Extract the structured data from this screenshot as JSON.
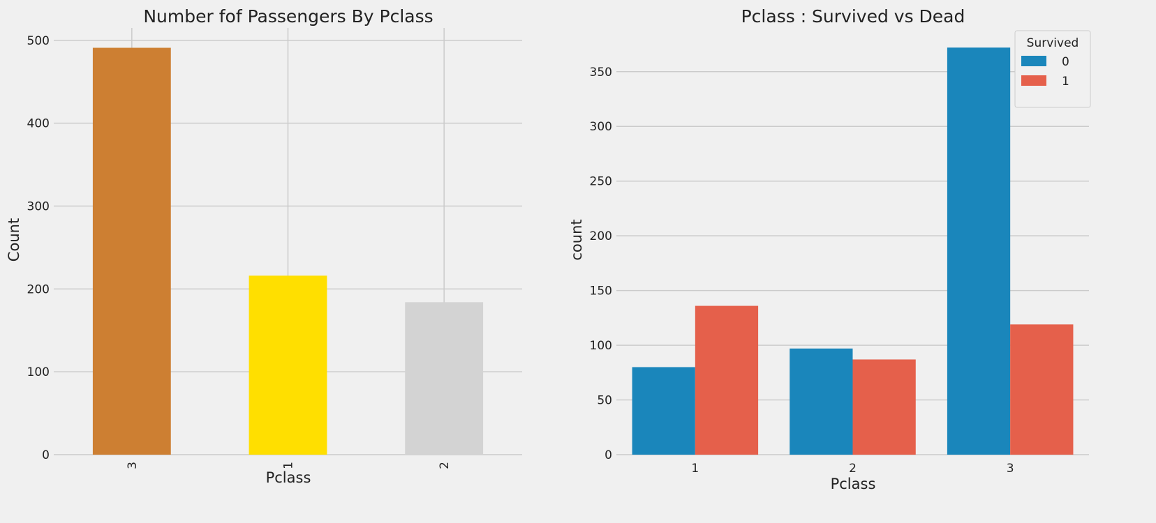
{
  "chart_data": [
    {
      "type": "bar",
      "title": "Number fof Passengers By Pclass",
      "xlabel": "Pclass",
      "ylabel": "Count",
      "categories": [
        "3",
        "1",
        "2"
      ],
      "values": [
        491,
        216,
        184
      ],
      "bar_colors": [
        "#cd7f32",
        "#ffdf00",
        "#d3d3d3"
      ],
      "ylim": [
        0,
        515
      ],
      "yticks": [
        0,
        100,
        200,
        300,
        400,
        500
      ],
      "x_tick_rotation": "vertical",
      "grid": true
    },
    {
      "type": "bar",
      "title": "Pclass : Survived vs Dead",
      "xlabel": "Pclass",
      "ylabel": "count",
      "categories": [
        "1",
        "2",
        "3"
      ],
      "series": [
        {
          "name": "0",
          "values": [
            80,
            97,
            372
          ],
          "color": "#1a86bb"
        },
        {
          "name": "1",
          "values": [
            136,
            87,
            119
          ],
          "color": "#e5604b"
        }
      ],
      "legend": {
        "title": "Survived",
        "placement": "top-right"
      },
      "ylim": [
        0,
        390
      ],
      "yticks": [
        0,
        50,
        100,
        150,
        200,
        250,
        300,
        350
      ],
      "grid": true
    }
  ]
}
